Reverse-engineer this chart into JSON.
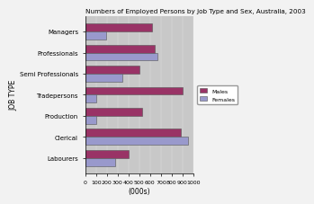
{
  "title": "Numbers of Employed Persons by Job Type and Sex, Australia, 2003",
  "categories": [
    "Labourers",
    "Clerical",
    "Production",
    "Tradepersons",
    "Semi Professionals",
    "Professionals",
    "Managers"
  ],
  "males": [
    400,
    880,
    530,
    900,
    500,
    640,
    620
  ],
  "females": [
    280,
    950,
    100,
    100,
    340,
    670,
    190
  ],
  "male_color": "#993366",
  "female_color": "#9999CC",
  "plot_bg_color": "#C8C8C8",
  "fig_bg_color": "#F2F2F2",
  "xlim": [
    0,
    1000
  ],
  "xticks": [
    0,
    100,
    200,
    300,
    400,
    500,
    600,
    700,
    800,
    900,
    1000
  ],
  "xlabel": "(000s)",
  "ylabel": "JOB TYPE",
  "legend_labels": [
    "Males",
    "Females"
  ]
}
